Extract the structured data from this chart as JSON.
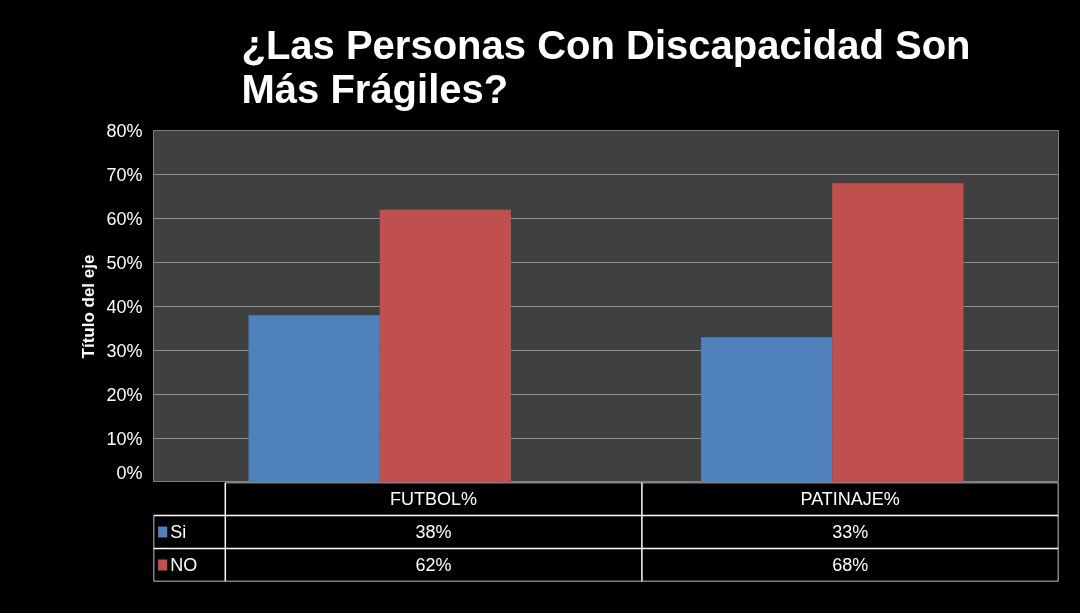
{
  "chart_data": {
    "type": "bar",
    "title": "¿Las Personas Con Discapacidad Son Más Frágiles?",
    "ylabel": "Título del eje",
    "categories": [
      "FUTBOL%",
      "PATINAJE%"
    ],
    "series": [
      {
        "name": "Si",
        "color": "#4f81bd",
        "values": [
          38,
          33
        ],
        "value_labels": [
          "38%",
          "33%"
        ]
      },
      {
        "name": "NO",
        "color": "#c0504d",
        "values": [
          62,
          68
        ],
        "value_labels": [
          "62%",
          "68%"
        ]
      }
    ],
    "ylim": [
      0,
      80
    ],
    "yticks": [
      {
        "value": 0,
        "label": "0%"
      },
      {
        "value": 10,
        "label": "10%"
      },
      {
        "value": 20,
        "label": "20%"
      },
      {
        "value": 30,
        "label": "30%"
      },
      {
        "value": 40,
        "label": "40%"
      },
      {
        "value": 50,
        "label": "50%"
      },
      {
        "value": 60,
        "label": "60%"
      },
      {
        "value": 70,
        "label": "70%"
      },
      {
        "value": 80,
        "label": "80%"
      }
    ],
    "grid": "y",
    "legend": "bottom"
  }
}
